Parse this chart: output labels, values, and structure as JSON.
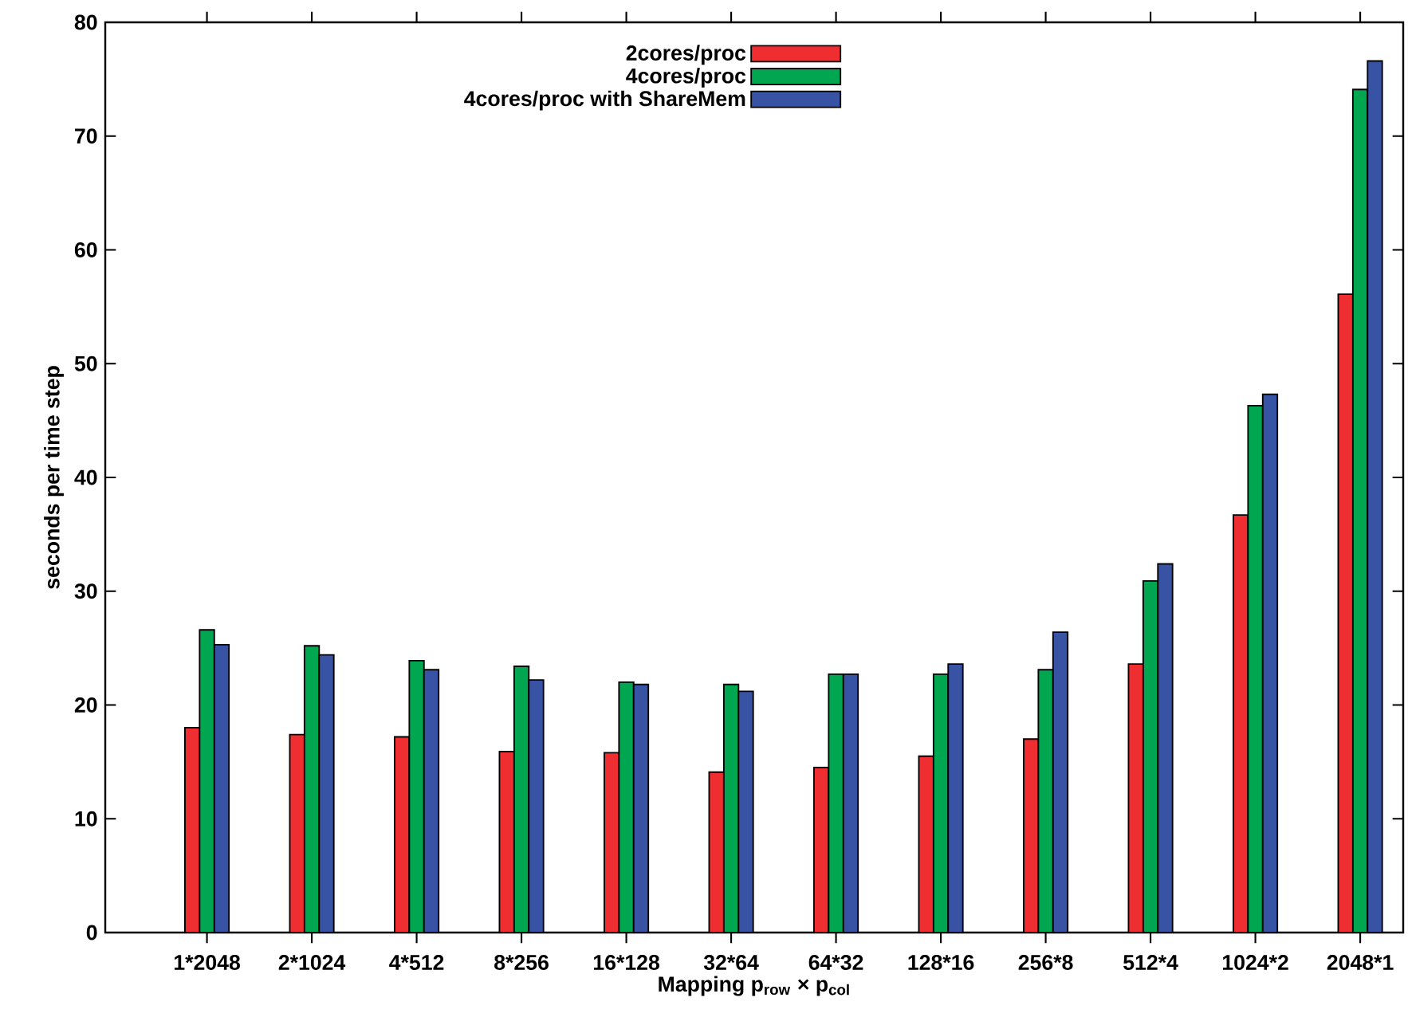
{
  "chart_data": {
    "type": "bar",
    "xlabel": "Mapping p$_{row}$ × p$_{col}$",
    "ylabel": "seconds per time step",
    "categories": [
      "1*2048",
      "2*1024",
      "4*512",
      "8*256",
      "16*128",
      "32*64",
      "64*32",
      "128*16",
      "256*8",
      "512*4",
      "1024*2",
      "2048*1"
    ],
    "series": [
      {
        "name": "2cores/proc",
        "color": "#ee2e31",
        "values": [
          18.0,
          17.4,
          17.2,
          15.9,
          15.8,
          14.1,
          14.5,
          15.5,
          17.0,
          23.6,
          36.7,
          56.1
        ]
      },
      {
        "name": "4cores/proc",
        "color": "#00a650",
        "values": [
          26.6,
          25.2,
          23.9,
          23.4,
          22.0,
          21.8,
          22.7,
          22.7,
          23.1,
          30.9,
          46.3,
          74.1
        ]
      },
      {
        "name": "4cores/proc with ShareMem",
        "color": "#3953a4",
        "values": [
          25.3,
          24.4,
          23.1,
          22.2,
          21.8,
          21.2,
          22.7,
          23.6,
          26.4,
          32.4,
          47.3,
          76.6
        ]
      }
    ],
    "ylim": [
      0,
      80
    ],
    "yticks": [
      0,
      10,
      20,
      30,
      40,
      50,
      60,
      70,
      80
    ],
    "grid": false,
    "legend": "top"
  }
}
